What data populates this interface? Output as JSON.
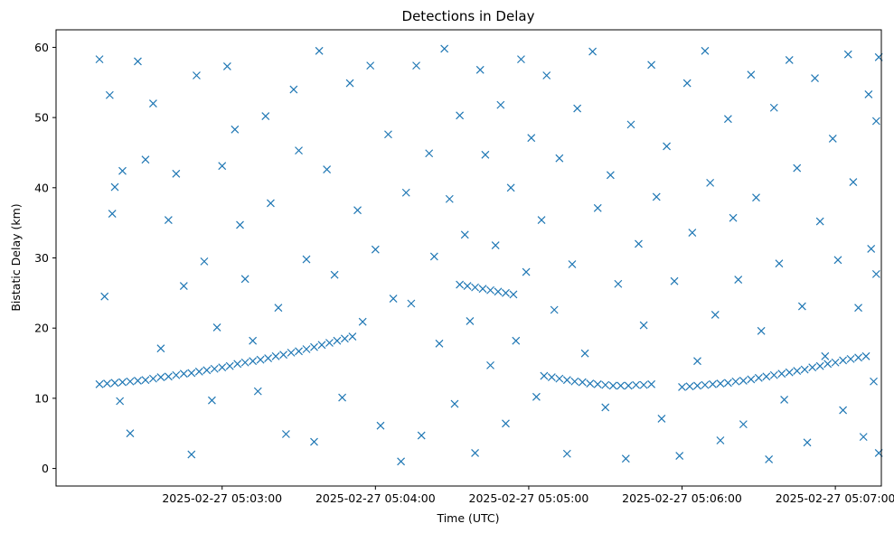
{
  "chart_data": {
    "type": "scatter",
    "title": "Detections in Delay",
    "xlabel": "Time (UTC)",
    "ylabel": "Bistatic Delay (km)",
    "marker": "x",
    "color": "#1f77b4",
    "grid": false,
    "x_range": [
      "2025-02-27 05:01:55",
      "2025-02-27 05:07:18"
    ],
    "ylim": [
      -2.5,
      62.5
    ],
    "x_ticks": [
      "2025-02-27 05:03:00",
      "2025-02-27 05:04:00",
      "2025-02-27 05:05:00",
      "2025-02-27 05:06:00",
      "2025-02-27 05:07:00"
    ],
    "y_ticks": [
      0,
      10,
      20,
      30,
      40,
      50,
      60
    ],
    "series": [
      {
        "kind": "track",
        "points": [
          [
            "2025-02-27 05:02:12",
            12.0
          ],
          [
            "2025-02-27 05:02:15",
            12.1
          ],
          [
            "2025-02-27 05:02:18",
            12.2
          ],
          [
            "2025-02-27 05:02:21",
            12.3
          ],
          [
            "2025-02-27 05:02:24",
            12.4
          ],
          [
            "2025-02-27 05:02:27",
            12.5
          ],
          [
            "2025-02-27 05:02:30",
            12.6
          ],
          [
            "2025-02-27 05:02:33",
            12.8
          ],
          [
            "2025-02-27 05:02:36",
            13.0
          ],
          [
            "2025-02-27 05:02:39",
            13.1
          ],
          [
            "2025-02-27 05:02:42",
            13.3
          ],
          [
            "2025-02-27 05:02:45",
            13.5
          ],
          [
            "2025-02-27 05:02:48",
            13.6
          ],
          [
            "2025-02-27 05:02:51",
            13.8
          ],
          [
            "2025-02-27 05:02:54",
            14.0
          ],
          [
            "2025-02-27 05:02:57",
            14.2
          ],
          [
            "2025-02-27 05:03:00",
            14.4
          ],
          [
            "2025-02-27 05:03:03",
            14.6
          ],
          [
            "2025-02-27 05:03:06",
            14.9
          ],
          [
            "2025-02-27 05:03:09",
            15.1
          ],
          [
            "2025-02-27 05:03:12",
            15.3
          ],
          [
            "2025-02-27 05:03:15",
            15.5
          ],
          [
            "2025-02-27 05:03:18",
            15.7
          ],
          [
            "2025-02-27 05:03:21",
            16.0
          ],
          [
            "2025-02-27 05:03:24",
            16.2
          ],
          [
            "2025-02-27 05:03:27",
            16.5
          ],
          [
            "2025-02-27 05:03:30",
            16.7
          ],
          [
            "2025-02-27 05:03:33",
            17.0
          ],
          [
            "2025-02-27 05:03:36",
            17.3
          ],
          [
            "2025-02-27 05:03:39",
            17.6
          ],
          [
            "2025-02-27 05:03:42",
            17.9
          ],
          [
            "2025-02-27 05:03:45",
            18.2
          ],
          [
            "2025-02-27 05:03:48",
            18.5
          ],
          [
            "2025-02-27 05:03:51",
            18.8
          ],
          [
            "2025-02-27 05:04:33",
            26.2
          ],
          [
            "2025-02-27 05:04:36",
            26.0
          ],
          [
            "2025-02-27 05:04:39",
            25.8
          ],
          [
            "2025-02-27 05:04:42",
            25.6
          ],
          [
            "2025-02-27 05:04:45",
            25.4
          ],
          [
            "2025-02-27 05:04:48",
            25.2
          ],
          [
            "2025-02-27 05:04:51",
            25.0
          ],
          [
            "2025-02-27 05:04:54",
            24.8
          ],
          [
            "2025-02-27 05:05:06",
            13.2
          ],
          [
            "2025-02-27 05:05:09",
            13.0
          ],
          [
            "2025-02-27 05:05:12",
            12.8
          ],
          [
            "2025-02-27 05:05:15",
            12.6
          ],
          [
            "2025-02-27 05:05:18",
            12.4
          ],
          [
            "2025-02-27 05:05:21",
            12.3
          ],
          [
            "2025-02-27 05:05:24",
            12.1
          ],
          [
            "2025-02-27 05:05:27",
            12.0
          ],
          [
            "2025-02-27 05:05:30",
            11.9
          ],
          [
            "2025-02-27 05:05:33",
            11.8
          ],
          [
            "2025-02-27 05:05:36",
            11.8
          ],
          [
            "2025-02-27 05:05:39",
            11.8
          ],
          [
            "2025-02-27 05:05:42",
            11.9
          ],
          [
            "2025-02-27 05:05:45",
            11.9
          ],
          [
            "2025-02-27 05:05:48",
            12.0
          ],
          [
            "2025-02-27 05:06:00",
            11.6
          ],
          [
            "2025-02-27 05:06:03",
            11.7
          ],
          [
            "2025-02-27 05:06:06",
            11.8
          ],
          [
            "2025-02-27 05:06:09",
            11.9
          ],
          [
            "2025-02-27 05:06:12",
            12.0
          ],
          [
            "2025-02-27 05:06:15",
            12.1
          ],
          [
            "2025-02-27 05:06:18",
            12.2
          ],
          [
            "2025-02-27 05:06:21",
            12.4
          ],
          [
            "2025-02-27 05:06:24",
            12.5
          ],
          [
            "2025-02-27 05:06:27",
            12.7
          ],
          [
            "2025-02-27 05:06:30",
            12.9
          ],
          [
            "2025-02-27 05:06:33",
            13.1
          ],
          [
            "2025-02-27 05:06:36",
            13.3
          ],
          [
            "2025-02-27 05:06:39",
            13.5
          ],
          [
            "2025-02-27 05:06:42",
            13.7
          ],
          [
            "2025-02-27 05:06:45",
            13.9
          ],
          [
            "2025-02-27 05:06:48",
            14.1
          ],
          [
            "2025-02-27 05:06:51",
            14.4
          ],
          [
            "2025-02-27 05:06:54",
            14.6
          ],
          [
            "2025-02-27 05:06:57",
            14.9
          ],
          [
            "2025-02-27 05:07:00",
            15.1
          ],
          [
            "2025-02-27 05:07:03",
            15.4
          ],
          [
            "2025-02-27 05:07:06",
            15.6
          ],
          [
            "2025-02-27 05:07:09",
            15.8
          ],
          [
            "2025-02-27 05:07:12",
            16.0
          ]
        ]
      },
      {
        "kind": "clutter",
        "points": [
          [
            "2025-02-27 05:02:12",
            58.3
          ],
          [
            "2025-02-27 05:02:14",
            24.5
          ],
          [
            "2025-02-27 05:02:16",
            53.2
          ],
          [
            "2025-02-27 05:02:17",
            36.3
          ],
          [
            "2025-02-27 05:02:18",
            40.1
          ],
          [
            "2025-02-27 05:02:20",
            9.6
          ],
          [
            "2025-02-27 05:02:21",
            42.4
          ],
          [
            "2025-02-27 05:02:24",
            5.0
          ],
          [
            "2025-02-27 05:02:27",
            58.0
          ],
          [
            "2025-02-27 05:02:30",
            44.0
          ],
          [
            "2025-02-27 05:02:33",
            52.0
          ],
          [
            "2025-02-27 05:02:36",
            17.1
          ],
          [
            "2025-02-27 05:02:39",
            35.4
          ],
          [
            "2025-02-27 05:02:42",
            42.0
          ],
          [
            "2025-02-27 05:02:45",
            26.0
          ],
          [
            "2025-02-27 05:02:48",
            2.0
          ],
          [
            "2025-02-27 05:02:50",
            56.0
          ],
          [
            "2025-02-27 05:02:53",
            29.5
          ],
          [
            "2025-02-27 05:02:56",
            9.7
          ],
          [
            "2025-02-27 05:02:58",
            20.1
          ],
          [
            "2025-02-27 05:03:00",
            43.1
          ],
          [
            "2025-02-27 05:03:02",
            57.3
          ],
          [
            "2025-02-27 05:03:05",
            48.3
          ],
          [
            "2025-02-27 05:03:07",
            34.7
          ],
          [
            "2025-02-27 05:03:09",
            27.0
          ],
          [
            "2025-02-27 05:03:12",
            18.2
          ],
          [
            "2025-02-27 05:03:14",
            11.0
          ],
          [
            "2025-02-27 05:03:17",
            50.2
          ],
          [
            "2025-02-27 05:03:19",
            37.8
          ],
          [
            "2025-02-27 05:03:22",
            22.9
          ],
          [
            "2025-02-27 05:03:25",
            4.9
          ],
          [
            "2025-02-27 05:03:28",
            54.0
          ],
          [
            "2025-02-27 05:03:30",
            45.3
          ],
          [
            "2025-02-27 05:03:33",
            29.8
          ],
          [
            "2025-02-27 05:03:36",
            3.8
          ],
          [
            "2025-02-27 05:03:38",
            59.5
          ],
          [
            "2025-02-27 05:03:41",
            42.6
          ],
          [
            "2025-02-27 05:03:44",
            27.6
          ],
          [
            "2025-02-27 05:03:47",
            10.1
          ],
          [
            "2025-02-27 05:03:50",
            54.9
          ],
          [
            "2025-02-27 05:03:53",
            36.8
          ],
          [
            "2025-02-27 05:03:55",
            20.9
          ],
          [
            "2025-02-27 05:03:58",
            57.4
          ],
          [
            "2025-02-27 05:04:00",
            31.2
          ],
          [
            "2025-02-27 05:04:02",
            6.1
          ],
          [
            "2025-02-27 05:04:05",
            47.6
          ],
          [
            "2025-02-27 05:04:07",
            24.2
          ],
          [
            "2025-02-27 05:04:10",
            1.0
          ],
          [
            "2025-02-27 05:04:12",
            39.3
          ],
          [
            "2025-02-27 05:04:14",
            23.5
          ],
          [
            "2025-02-27 05:04:16",
            57.4
          ],
          [
            "2025-02-27 05:04:18",
            4.7
          ],
          [
            "2025-02-27 05:04:21",
            44.9
          ],
          [
            "2025-02-27 05:04:23",
            30.2
          ],
          [
            "2025-02-27 05:04:25",
            17.8
          ],
          [
            "2025-02-27 05:04:27",
            59.8
          ],
          [
            "2025-02-27 05:04:29",
            38.4
          ],
          [
            "2025-02-27 05:04:31",
            9.2
          ],
          [
            "2025-02-27 05:04:33",
            50.3
          ],
          [
            "2025-02-27 05:04:35",
            33.3
          ],
          [
            "2025-02-27 05:04:37",
            21.0
          ],
          [
            "2025-02-27 05:04:39",
            2.2
          ],
          [
            "2025-02-27 05:04:41",
            56.8
          ],
          [
            "2025-02-27 05:04:43",
            44.7
          ],
          [
            "2025-02-27 05:04:45",
            14.7
          ],
          [
            "2025-02-27 05:04:47",
            31.8
          ],
          [
            "2025-02-27 05:04:49",
            51.8
          ],
          [
            "2025-02-27 05:04:51",
            6.4
          ],
          [
            "2025-02-27 05:04:53",
            40.0
          ],
          [
            "2025-02-27 05:04:55",
            18.2
          ],
          [
            "2025-02-27 05:04:57",
            58.3
          ],
          [
            "2025-02-27 05:04:59",
            28.0
          ],
          [
            "2025-02-27 05:05:01",
            47.1
          ],
          [
            "2025-02-27 05:05:03",
            10.2
          ],
          [
            "2025-02-27 05:05:05",
            35.4
          ],
          [
            "2025-02-27 05:05:07",
            56.0
          ],
          [
            "2025-02-27 05:05:10",
            22.6
          ],
          [
            "2025-02-27 05:05:12",
            44.2
          ],
          [
            "2025-02-27 05:05:15",
            2.1
          ],
          [
            "2025-02-27 05:05:17",
            29.1
          ],
          [
            "2025-02-27 05:05:19",
            51.3
          ],
          [
            "2025-02-27 05:05:22",
            16.4
          ],
          [
            "2025-02-27 05:05:25",
            59.4
          ],
          [
            "2025-02-27 05:05:27",
            37.1
          ],
          [
            "2025-02-27 05:05:30",
            8.7
          ],
          [
            "2025-02-27 05:05:32",
            41.8
          ],
          [
            "2025-02-27 05:05:35",
            26.3
          ],
          [
            "2025-02-27 05:05:38",
            1.4
          ],
          [
            "2025-02-27 05:05:40",
            49.0
          ],
          [
            "2025-02-27 05:05:43",
            32.0
          ],
          [
            "2025-02-27 05:05:45",
            20.4
          ],
          [
            "2025-02-27 05:05:48",
            57.5
          ],
          [
            "2025-02-27 05:05:50",
            38.7
          ],
          [
            "2025-02-27 05:05:52",
            7.1
          ],
          [
            "2025-02-27 05:05:54",
            45.9
          ],
          [
            "2025-02-27 05:05:57",
            26.7
          ],
          [
            "2025-02-27 05:05:59",
            1.8
          ],
          [
            "2025-02-27 05:06:02",
            54.9
          ],
          [
            "2025-02-27 05:06:04",
            33.6
          ],
          [
            "2025-02-27 05:06:06",
            15.3
          ],
          [
            "2025-02-27 05:06:09",
            59.5
          ],
          [
            "2025-02-27 05:06:11",
            40.7
          ],
          [
            "2025-02-27 05:06:13",
            21.9
          ],
          [
            "2025-02-27 05:06:15",
            4.0
          ],
          [
            "2025-02-27 05:06:18",
            49.8
          ],
          [
            "2025-02-27 05:06:20",
            35.7
          ],
          [
            "2025-02-27 05:06:22",
            26.9
          ],
          [
            "2025-02-27 05:06:24",
            6.3
          ],
          [
            "2025-02-27 05:06:27",
            56.1
          ],
          [
            "2025-02-27 05:06:29",
            38.6
          ],
          [
            "2025-02-27 05:06:31",
            19.6
          ],
          [
            "2025-02-27 05:06:34",
            1.3
          ],
          [
            "2025-02-27 05:06:36",
            51.4
          ],
          [
            "2025-02-27 05:06:38",
            29.2
          ],
          [
            "2025-02-27 05:06:40",
            9.8
          ],
          [
            "2025-02-27 05:06:42",
            58.2
          ],
          [
            "2025-02-27 05:06:45",
            42.8
          ],
          [
            "2025-02-27 05:06:47",
            23.1
          ],
          [
            "2025-02-27 05:06:49",
            3.7
          ],
          [
            "2025-02-27 05:06:52",
            55.6
          ],
          [
            "2025-02-27 05:06:54",
            35.2
          ],
          [
            "2025-02-27 05:06:56",
            16.0
          ],
          [
            "2025-02-27 05:06:59",
            47.0
          ],
          [
            "2025-02-27 05:07:01",
            29.7
          ],
          [
            "2025-02-27 05:07:03",
            8.3
          ],
          [
            "2025-02-27 05:07:05",
            59.0
          ],
          [
            "2025-02-27 05:07:07",
            40.8
          ],
          [
            "2025-02-27 05:07:09",
            22.9
          ],
          [
            "2025-02-27 05:07:11",
            4.5
          ],
          [
            "2025-02-27 05:07:13",
            53.3
          ],
          [
            "2025-02-27 05:07:14",
            31.3
          ],
          [
            "2025-02-27 05:07:15",
            12.4
          ],
          [
            "2025-02-27 05:07:16",
            49.5
          ],
          [
            "2025-02-27 05:07:16",
            27.7
          ],
          [
            "2025-02-27 05:07:17",
            2.2
          ],
          [
            "2025-02-27 05:07:17",
            58.6
          ]
        ]
      }
    ]
  }
}
